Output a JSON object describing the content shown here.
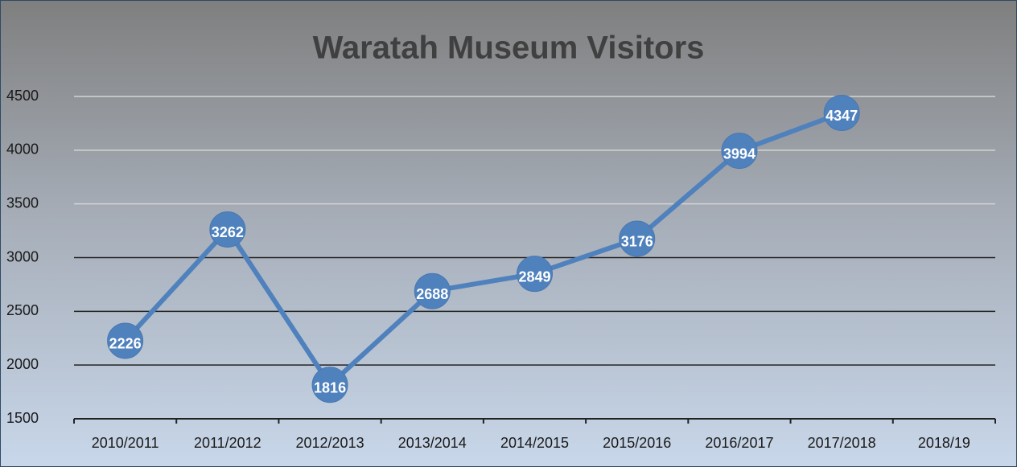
{
  "chart_data": {
    "type": "line",
    "title": "Waratah Museum Visitors",
    "categories": [
      "2010/2011",
      "2011/2012",
      "2012/2013",
      "2013/2014",
      "2014/2015",
      "2015/2016",
      "2016/2017",
      "2017/2018",
      "2018/19"
    ],
    "series": [
      {
        "name": "Visitors",
        "color": "#4f81bd",
        "values": [
          2226,
          3262,
          1816,
          2688,
          2849,
          3176,
          3994,
          4347,
          null
        ]
      }
    ],
    "ylim": [
      1500,
      4500
    ],
    "yticks": [
      1500,
      2000,
      2500,
      3000,
      3500,
      4000,
      4500
    ],
    "grid": true
  }
}
